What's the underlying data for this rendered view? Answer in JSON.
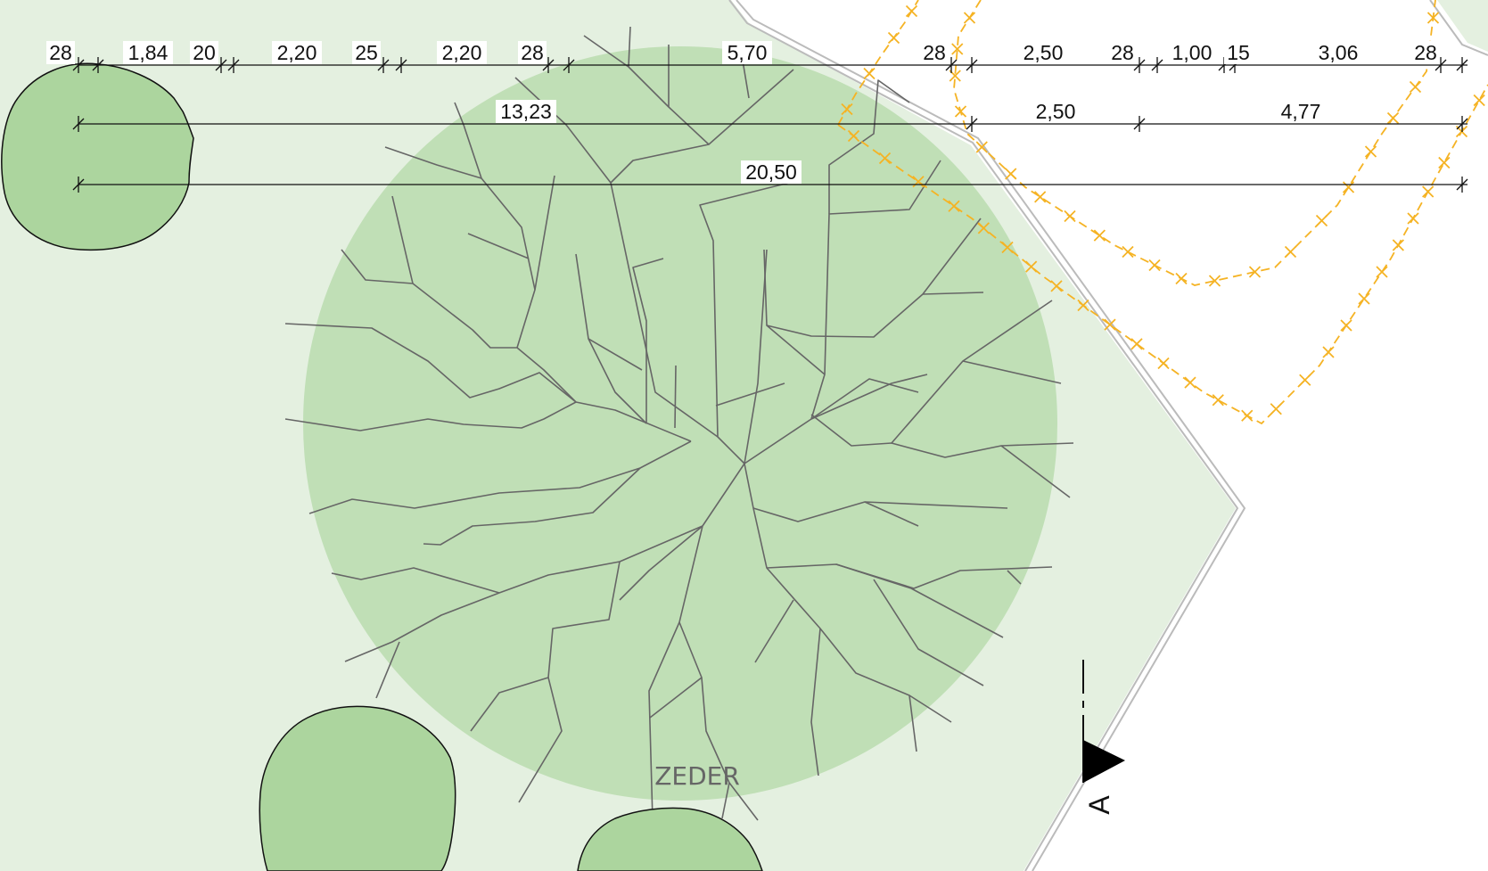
{
  "plan": {
    "colors": {
      "lawn": "#e4f0e0",
      "canopy": "#c0dfb6",
      "small_tree": "#acd59e",
      "branch": "#666666",
      "dimension_line": "#111111",
      "fence": "#f5b324",
      "boundary": "#bbbbbb"
    },
    "dimensions": {
      "row1": [
        "28",
        "1,84",
        "20",
        "2,20",
        "25",
        "2,20",
        "28",
        "5,70",
        "28",
        "2,50",
        "28",
        "1,00",
        "15",
        "3,06",
        "28"
      ],
      "row2": [
        "13,23",
        "2,50",
        "4,77"
      ],
      "row3": [
        "20,50"
      ]
    },
    "labels": {
      "tree": "ZEDER",
      "section": "A"
    }
  }
}
